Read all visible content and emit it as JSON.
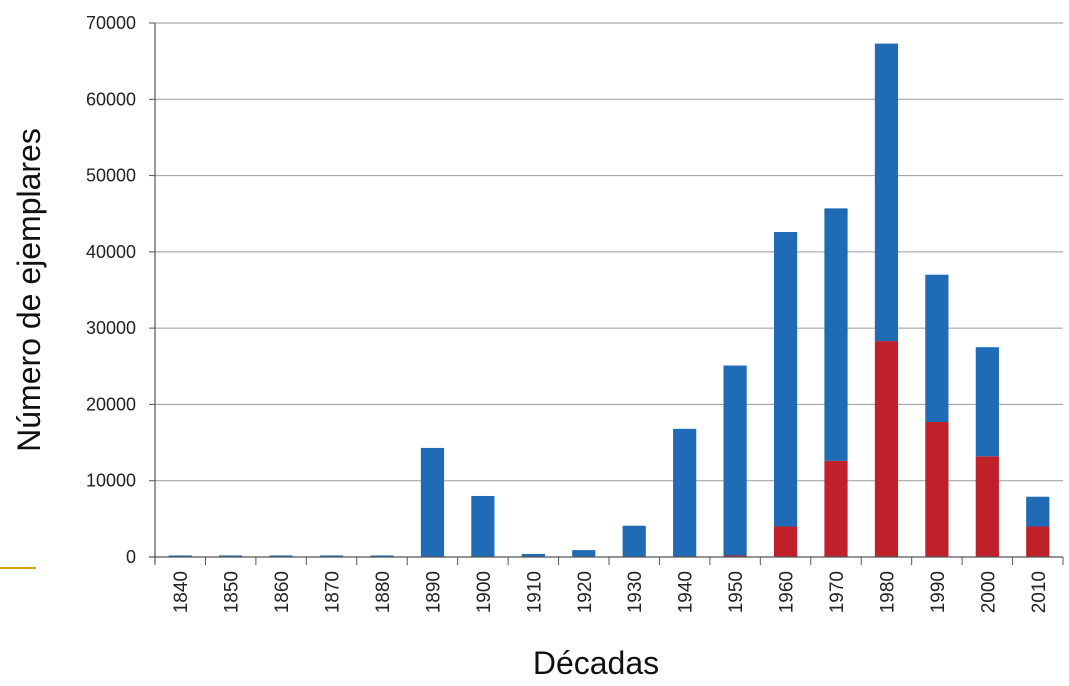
{
  "chart_data": {
    "type": "bar",
    "stacked": true,
    "xlabel": "Décadas",
    "ylabel": "Número de ejemplares",
    "ylim": [
      0,
      70000
    ],
    "yticks": [
      0,
      10000,
      20000,
      30000,
      40000,
      50000,
      60000,
      70000
    ],
    "ytick_labels": [
      "0",
      "10000",
      "20000",
      "30000",
      "40000",
      "50000",
      "60000",
      "70000"
    ],
    "grid": true,
    "legend": "none",
    "categories": [
      "1840",
      "1850",
      "1860",
      "1870",
      "1880",
      "1890",
      "1900",
      "1910",
      "1920",
      "1930",
      "1940",
      "1950",
      "1960",
      "1970",
      "1980",
      "1990",
      "2000",
      "2010"
    ],
    "series": [
      {
        "color": "#c0202a",
        "values": [
          0,
          0,
          0,
          0,
          0,
          0,
          0,
          0,
          0,
          0,
          0,
          200,
          4000,
          12600,
          28300,
          17700,
          13200,
          4000
        ]
      },
      {
        "color": "#1f6bb5",
        "values": [
          200,
          200,
          200,
          200,
          200,
          14300,
          8000,
          400,
          900,
          4100,
          16800,
          24900,
          38600,
          33100,
          39000,
          19300,
          14300,
          3900
        ]
      }
    ]
  },
  "colors": {
    "accent_line": "#d4a017",
    "grid": "#9a9a9a"
  }
}
